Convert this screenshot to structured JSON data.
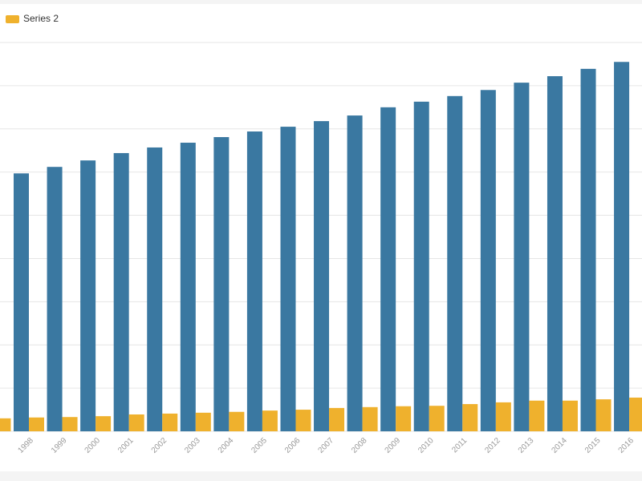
{
  "chart_data": {
    "type": "bar",
    "categories": [
      null,
      "1998",
      "1999",
      "2000",
      "2001",
      "2002",
      "2003",
      "2004",
      "2005",
      "2006",
      "2007",
      "2008",
      "2009",
      "2010",
      "2011",
      "2012",
      "2013",
      "2014",
      "2015",
      "2016"
    ],
    "series": [
      {
        "color": "#3a78a1",
        "values": [
          null,
          59.7,
          61.2,
          62.7,
          64.4,
          65.7,
          66.8,
          68.1,
          69.4,
          70.5,
          71.8,
          73.1,
          75.0,
          76.3,
          77.6,
          79.0,
          80.7,
          82.2,
          83.9,
          85.5
        ]
      },
      {
        "name": "Series 2",
        "color": "#efb12d",
        "values": [
          3.0,
          3.2,
          3.3,
          3.5,
          3.9,
          4.1,
          4.3,
          4.5,
          4.8,
          5.0,
          5.4,
          5.6,
          5.8,
          5.9,
          6.3,
          6.7,
          7.1,
          7.1,
          7.4,
          7.8
        ]
      }
    ],
    "ylim": [
      0,
      90
    ],
    "yticks": [
      0,
      10,
      20,
      30,
      40,
      50,
      60,
      70,
      80,
      90
    ],
    "grid": true
  }
}
